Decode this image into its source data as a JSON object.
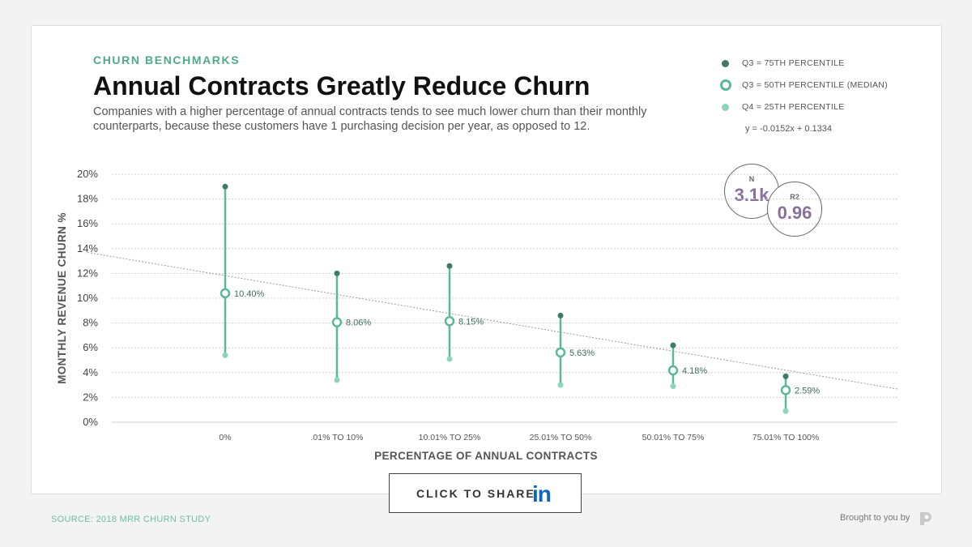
{
  "header": {
    "eyebrow": "CHURN BENCHMARKS",
    "title": "Annual Contracts Greatly Reduce Churn",
    "subtitle": "Companies with a higher percentage of annual contracts tends to see much lower churn than their monthly counterparts, because these customers have 1 purchasing decision per year, as opposed to 12."
  },
  "legend": {
    "items": [
      {
        "label": "Q3 = 75TH PERCENTILE"
      },
      {
        "label": "Q3 = 50TH PERCENTILE (MEDIAN)"
      },
      {
        "label": "Q4 = 25TH PERCENTILE"
      }
    ],
    "equation": "y = -0.0152x + 0.1334"
  },
  "stats": {
    "n_label": "N",
    "n_value": "3.1k",
    "r2_label": "R2",
    "r2_value": "0.96"
  },
  "colors": {
    "q75": "#3d7b68",
    "median": "#5bb89a",
    "q25": "#8fd4bd",
    "trend": "#9a9a9a",
    "grid": "#cfcfcf",
    "accent": "#4faa8c"
  },
  "chart_data": {
    "type": "scatter",
    "xlabel": "PERCENTAGE OF ANNUAL CONTRACTS",
    "ylabel": "MONTHLY REVENUE CHURN %",
    "ylim": [
      0,
      20
    ],
    "yticks": [
      "0%",
      "2%",
      "4%",
      "6%",
      "8%",
      "10%",
      "12%",
      "14%",
      "16%",
      "18%",
      "20%"
    ],
    "categories": [
      "0%",
      ".01% TO 10%",
      "10.01% TO 25%",
      "25.01% TO 50%",
      "50.01% TO 75%",
      "75.01% TO 100%"
    ],
    "series": [
      {
        "name": "Q3 = 75TH PERCENTILE",
        "values": [
          19.0,
          12.0,
          12.6,
          8.6,
          6.2,
          3.7
        ]
      },
      {
        "name": "Q3 = 50TH PERCENTILE (MEDIAN)",
        "values": [
          10.4,
          8.06,
          8.15,
          5.63,
          4.18,
          2.59
        ]
      },
      {
        "name": "Q4 = 25TH PERCENTILE",
        "values": [
          5.4,
          3.4,
          5.1,
          3.0,
          2.9,
          0.9
        ]
      }
    ],
    "median_labels": [
      "10.40%",
      "8.06%",
      "8.15%",
      "5.63%",
      "4.18%",
      "2.59%"
    ],
    "trendline": {
      "slope": -0.0152,
      "intercept": 0.1334
    }
  },
  "cta": {
    "label": "CLICK TO SHARE",
    "linkedin": "in"
  },
  "footer": {
    "source": "SOURCE: 2018 MRR CHURN STUDY",
    "brought": "Brought to you by"
  }
}
